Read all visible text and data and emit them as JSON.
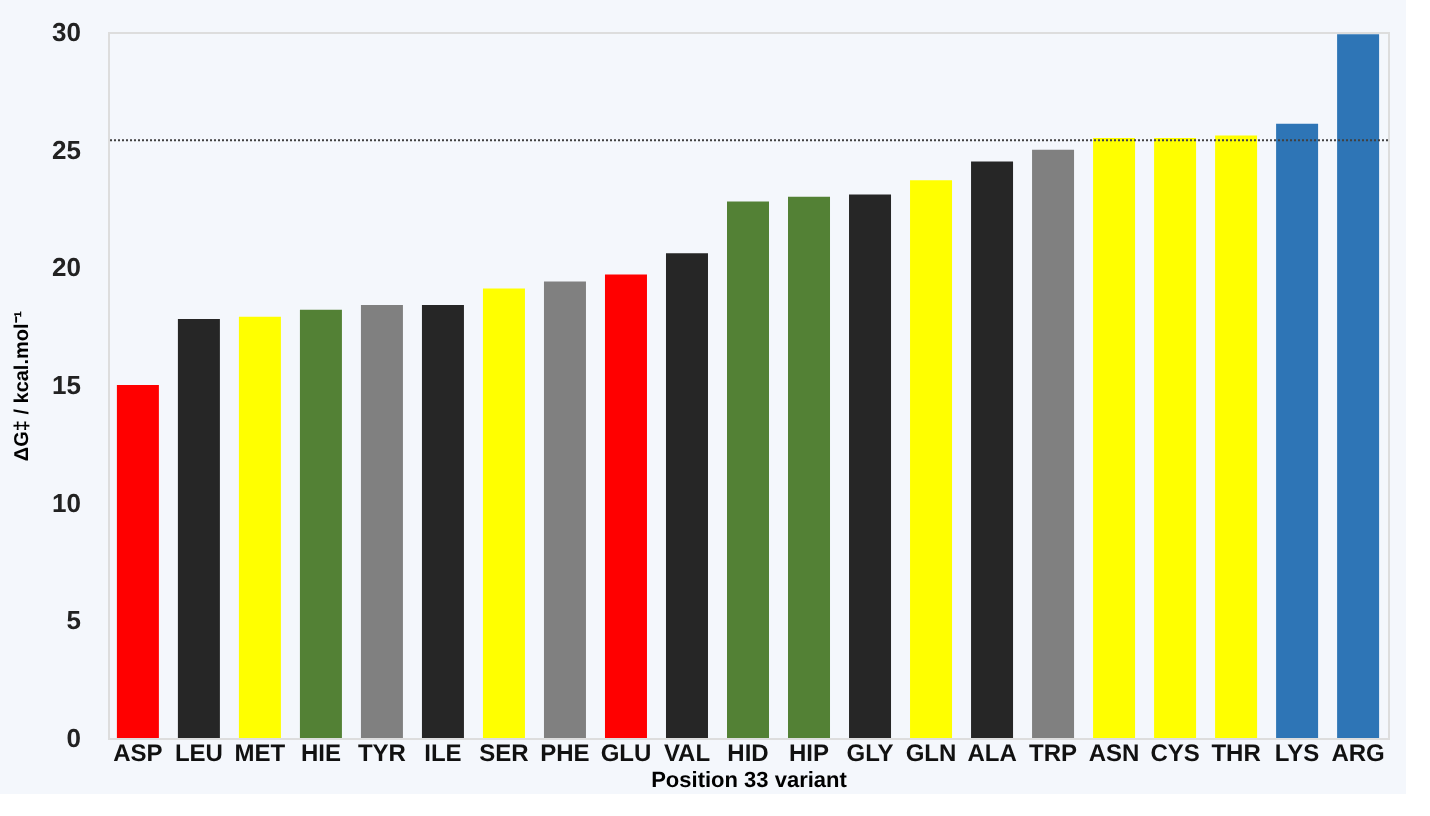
{
  "chart_data": {
    "type": "bar",
    "xlabel": "Position 33 variant",
    "ylabel": "ΔG‡ / kcal.mol⁻¹",
    "categories": [
      "ASP",
      "LEU",
      "MET",
      "HIE",
      "TYR",
      "ILE",
      "SER",
      "PHE",
      "GLU",
      "VAL",
      "HID",
      "HIP",
      "GLY",
      "GLN",
      "ALA",
      "TRP",
      "ASN",
      "CYS",
      "THR",
      "LYS",
      "ARG"
    ],
    "values": [
      15.0,
      17.8,
      17.9,
      18.2,
      18.4,
      18.4,
      19.1,
      19.4,
      19.7,
      20.6,
      22.8,
      23.0,
      23.1,
      23.7,
      24.5,
      25.0,
      25.5,
      25.5,
      25.6,
      26.1,
      29.9
    ],
    "colors": [
      "#ff0000",
      "#262626",
      "#ffff00",
      "#538135",
      "#808080",
      "#262626",
      "#ffff00",
      "#808080",
      "#ff0000",
      "#262626",
      "#538135",
      "#538135",
      "#262626",
      "#ffff00",
      "#262626",
      "#808080",
      "#ffff00",
      "#ffff00",
      "#ffff00",
      "#2e75b6",
      "#2e75b6"
    ],
    "ylim": [
      0,
      30
    ],
    "yticks": [
      0,
      5,
      10,
      15,
      20,
      25,
      30
    ],
    "ref_lines": [
      {
        "axis": "y",
        "value": 25.4,
        "color": "#404040",
        "line_style": "dotted"
      }
    ],
    "grid": false,
    "legend": false
  }
}
